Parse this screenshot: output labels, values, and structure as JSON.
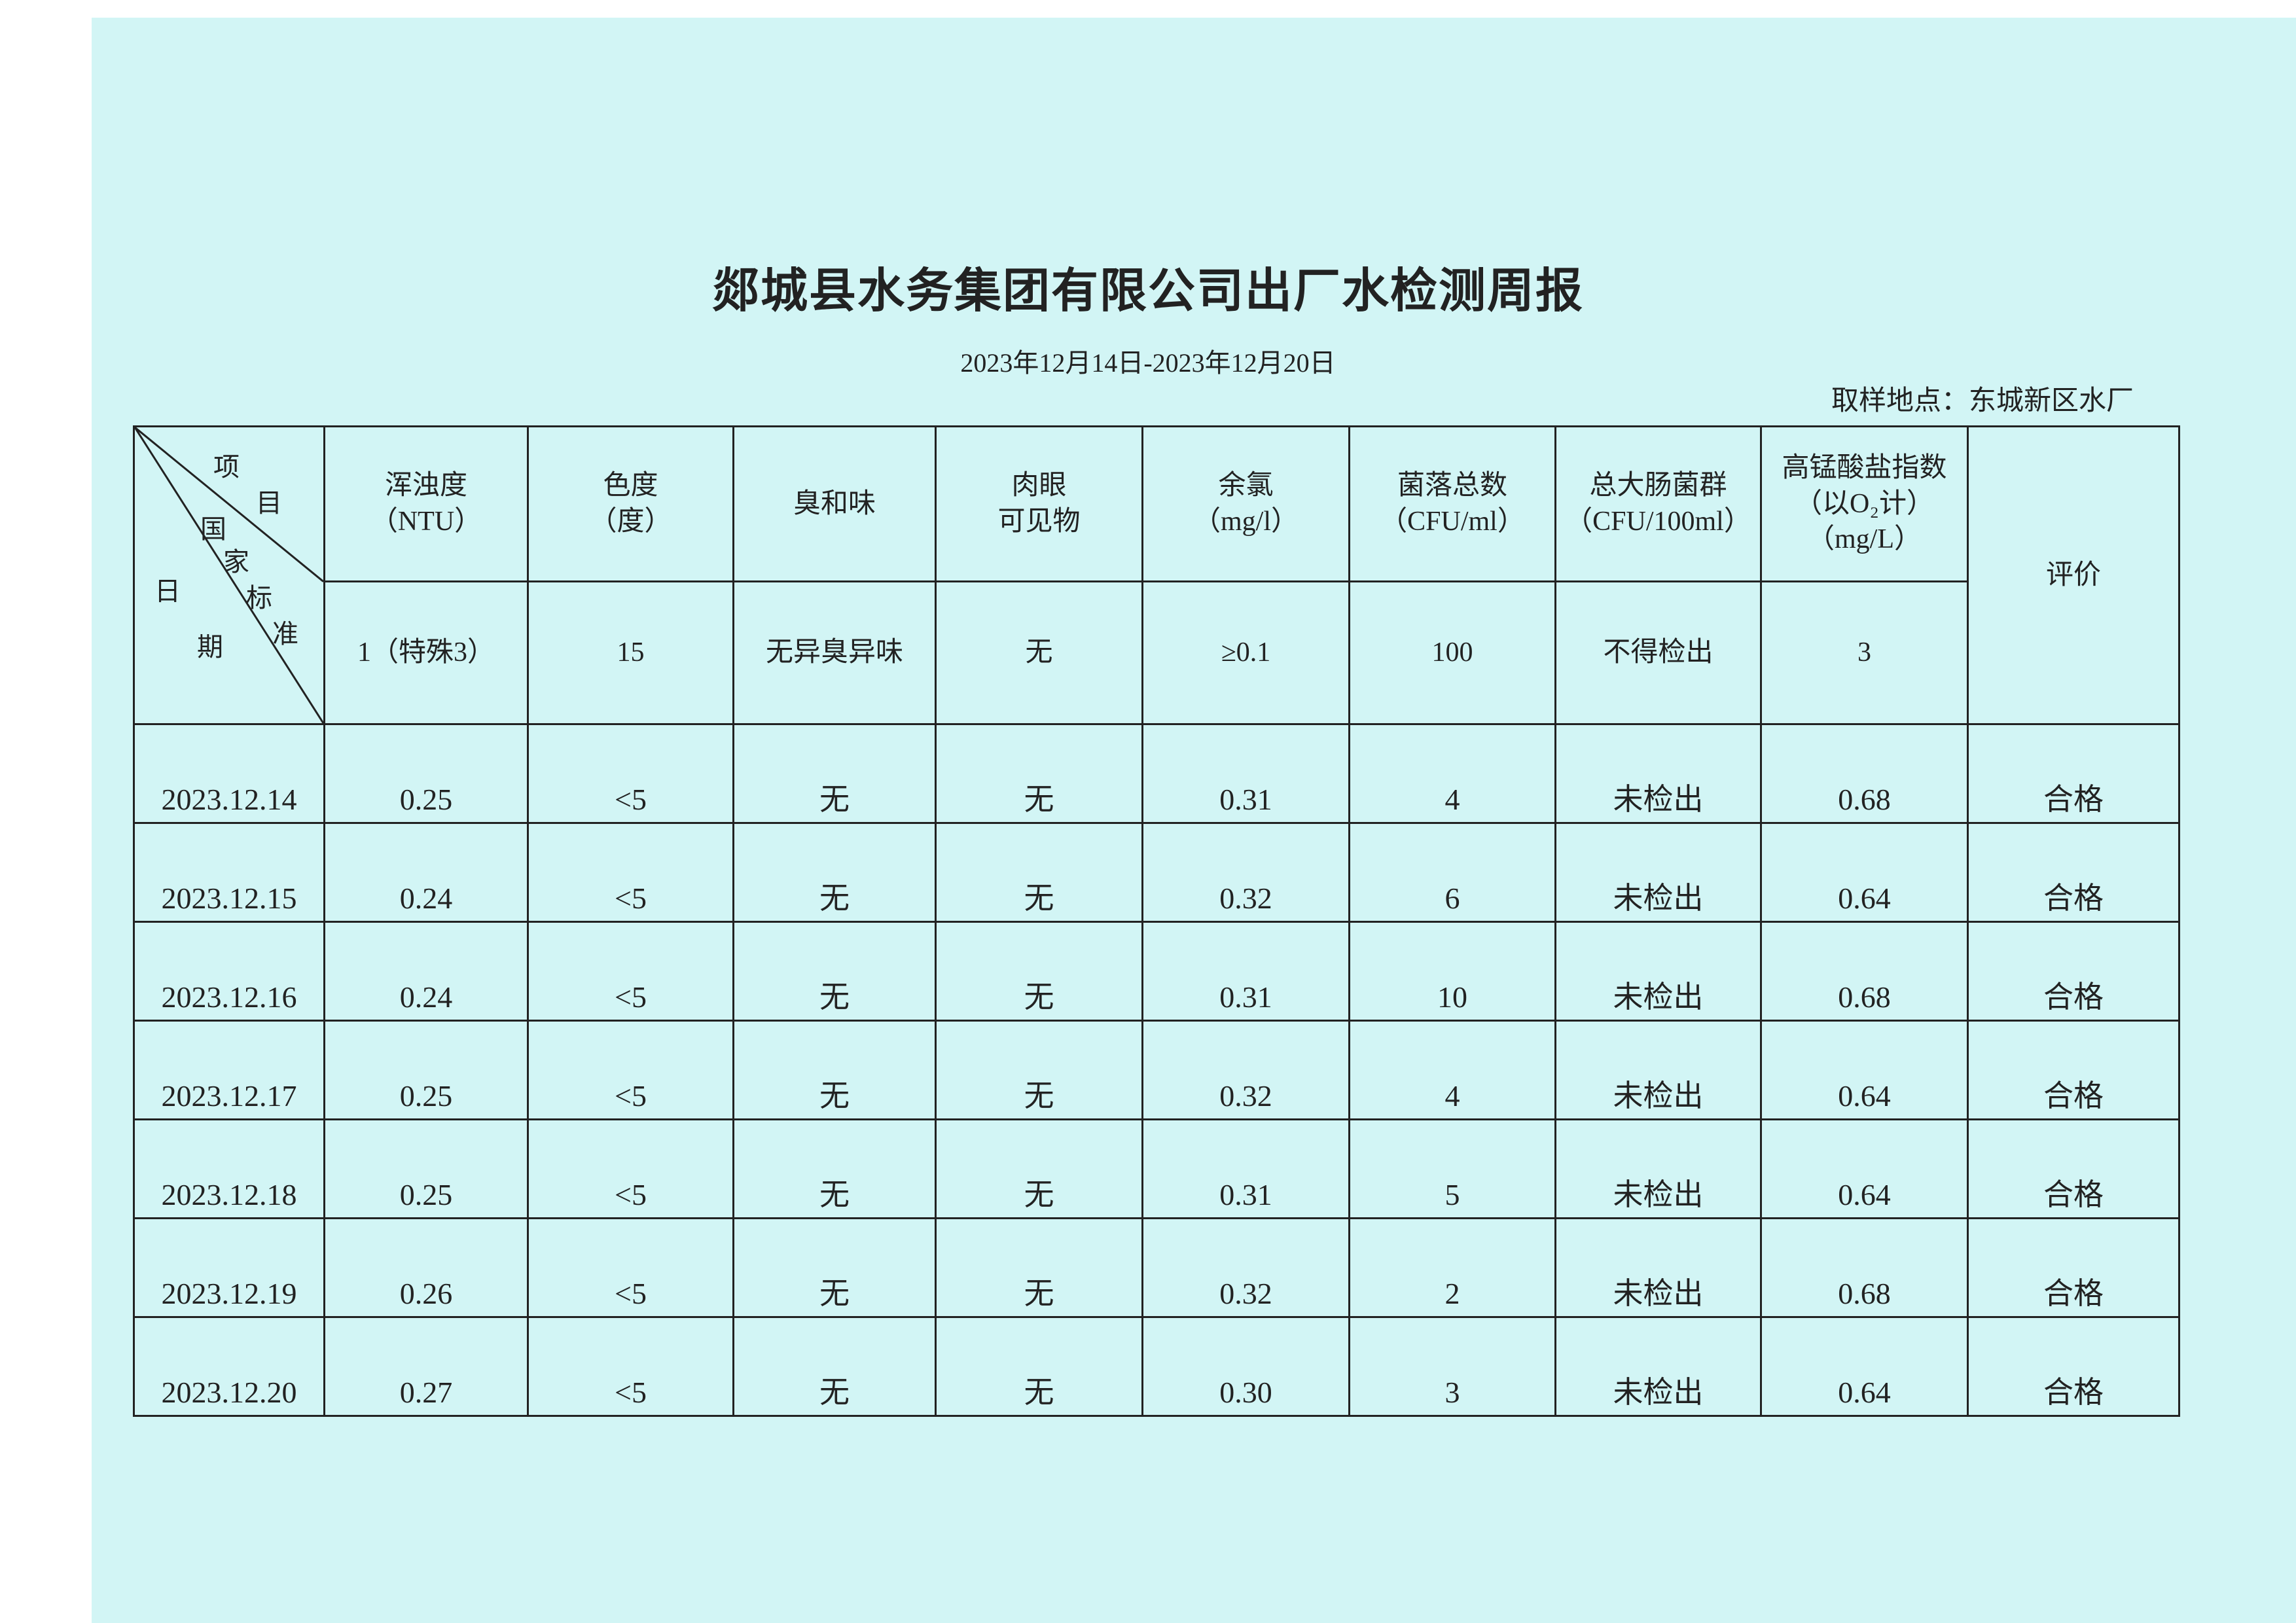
{
  "title": "郯城县水务集团有限公司出厂水检测周报",
  "date_range": "2023年12月14日-2023年12月20日",
  "sampling_location": "取样地点：东城新区水厂",
  "corner_labels": {
    "item_1": "项",
    "item_2": "目",
    "std_1": "国",
    "std_2": "家",
    "std_3": "标",
    "std_4": "准",
    "date_1": "日",
    "date_2": "期"
  },
  "columns": [
    {
      "name": "浑浊度",
      "unit": "（NTU）",
      "standard": "1（特殊3）"
    },
    {
      "name": "色度",
      "unit": "（度）",
      "standard": "15"
    },
    {
      "name": "臭和味",
      "unit": "",
      "standard": "无异臭异味"
    },
    {
      "name": "肉眼",
      "unit": "可见物",
      "standard": "无"
    },
    {
      "name": "余氯",
      "unit": "（mg/l）",
      "standard": "≥0.1"
    },
    {
      "name": "菌落总数",
      "unit": "（CFU/ml）",
      "standard": "100"
    },
    {
      "name": "总大肠菌群",
      "unit": "（CFU/100ml）",
      "standard": "不得检出"
    },
    {
      "name": "高锰酸盐指数",
      "unit": "（以O₂计）",
      "unit2": "（mg/L）",
      "standard": "3"
    }
  ],
  "evaluation_header": "评价",
  "rows": [
    [
      "2023.12.14",
      "0.25",
      "<5",
      "无",
      "无",
      "0.31",
      "4",
      "未检出",
      "0.68",
      "合格"
    ],
    [
      "2023.12.15",
      "0.24",
      "<5",
      "无",
      "无",
      "0.32",
      "6",
      "未检出",
      "0.64",
      "合格"
    ],
    [
      "2023.12.16",
      "0.24",
      "<5",
      "无",
      "无",
      "0.31",
      "10",
      "未检出",
      "0.68",
      "合格"
    ],
    [
      "2023.12.17",
      "0.25",
      "<5",
      "无",
      "无",
      "0.32",
      "4",
      "未检出",
      "0.64",
      "合格"
    ],
    [
      "2023.12.18",
      "0.25",
      "<5",
      "无",
      "无",
      "0.31",
      "5",
      "未检出",
      "0.64",
      "合格"
    ],
    [
      "2023.12.19",
      "0.26",
      "<5",
      "无",
      "无",
      "0.32",
      "2",
      "未检出",
      "0.68",
      "合格"
    ],
    [
      "2023.12.20",
      "0.27",
      "<5",
      "无",
      "无",
      "0.30",
      "3",
      "未检出",
      "0.64",
      "合格"
    ]
  ]
}
